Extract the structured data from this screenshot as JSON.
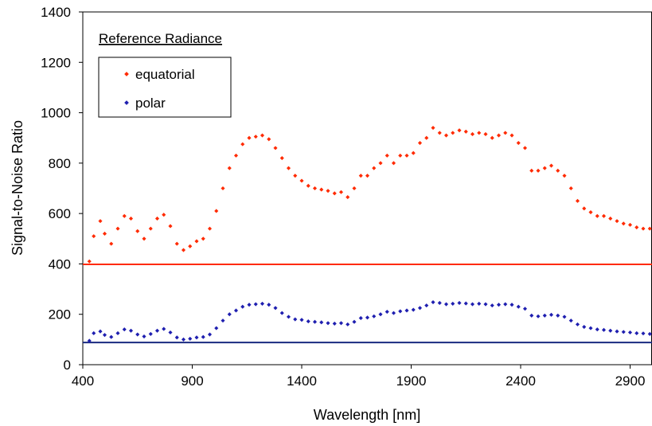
{
  "chart_data": {
    "type": "scatter",
    "title": "",
    "xlabel": "Wavelength [nm]",
    "ylabel": "Signal-to-Noise Ratio",
    "xlim": [
      400,
      3000
    ],
    "ylim": [
      0,
      1400
    ],
    "xticks": [
      400,
      900,
      1400,
      1900,
      2400,
      2900
    ],
    "yticks": [
      0,
      200,
      400,
      600,
      800,
      1000,
      1200,
      1400
    ],
    "grid": false,
    "legend": {
      "title": "Reference Radiance",
      "placement": "top-left",
      "entries": [
        "equatorial",
        "polar"
      ]
    },
    "series": [
      {
        "name": "equatorial",
        "color": "#ff2a00",
        "x": [
          430,
          450,
          480,
          500,
          530,
          560,
          590,
          620,
          650,
          680,
          710,
          740,
          770,
          800,
          830,
          860,
          890,
          920,
          950,
          980,
          1010,
          1040,
          1070,
          1100,
          1130,
          1160,
          1190,
          1220,
          1250,
          1280,
          1310,
          1340,
          1370,
          1400,
          1430,
          1460,
          1490,
          1520,
          1550,
          1580,
          1610,
          1640,
          1670,
          1700,
          1730,
          1760,
          1790,
          1820,
          1850,
          1880,
          1910,
          1940,
          1970,
          2000,
          2030,
          2060,
          2090,
          2120,
          2150,
          2180,
          2210,
          2240,
          2270,
          2300,
          2330,
          2360,
          2390,
          2420,
          2450,
          2480,
          2510,
          2540,
          2570,
          2600,
          2630,
          2660,
          2690,
          2720,
          2750,
          2780,
          2810,
          2840,
          2870,
          2900,
          2930,
          2960,
          2990
        ],
        "y": [
          410,
          510,
          570,
          520,
          480,
          540,
          590,
          580,
          530,
          500,
          540,
          580,
          595,
          550,
          480,
          455,
          470,
          490,
          500,
          540,
          610,
          700,
          780,
          830,
          875,
          900,
          905,
          910,
          895,
          860,
          820,
          780,
          750,
          730,
          710,
          700,
          695,
          690,
          680,
          685,
          665,
          700,
          750,
          750,
          780,
          800,
          830,
          800,
          830,
          830,
          840,
          880,
          900,
          940,
          920,
          910,
          920,
          930,
          925,
          915,
          920,
          915,
          900,
          910,
          920,
          910,
          880,
          860,
          770,
          770,
          780,
          790,
          770,
          750,
          700,
          650,
          620,
          605,
          590,
          590,
          580,
          570,
          560,
          555,
          545,
          540,
          540
        ]
      },
      {
        "name": "polar",
        "color": "#1f1fb0",
        "x": [
          430,
          450,
          480,
          500,
          530,
          560,
          590,
          620,
          650,
          680,
          710,
          740,
          770,
          800,
          830,
          860,
          890,
          920,
          950,
          980,
          1010,
          1040,
          1070,
          1100,
          1130,
          1160,
          1190,
          1220,
          1250,
          1280,
          1310,
          1340,
          1370,
          1400,
          1430,
          1460,
          1490,
          1520,
          1550,
          1580,
          1610,
          1640,
          1670,
          1700,
          1730,
          1760,
          1790,
          1820,
          1850,
          1880,
          1910,
          1940,
          1970,
          2000,
          2030,
          2060,
          2090,
          2120,
          2150,
          2180,
          2210,
          2240,
          2270,
          2300,
          2330,
          2360,
          2390,
          2420,
          2450,
          2480,
          2510,
          2540,
          2570,
          2600,
          2630,
          2660,
          2690,
          2720,
          2750,
          2780,
          2810,
          2840,
          2870,
          2900,
          2930,
          2960,
          2990
        ],
        "y": [
          95,
          125,
          132,
          118,
          110,
          125,
          140,
          135,
          120,
          112,
          122,
          135,
          142,
          128,
          108,
          100,
          103,
          108,
          110,
          120,
          145,
          175,
          200,
          215,
          230,
          238,
          240,
          242,
          238,
          225,
          205,
          190,
          180,
          178,
          172,
          170,
          168,
          165,
          163,
          165,
          160,
          170,
          185,
          187,
          192,
          200,
          210,
          205,
          212,
          215,
          218,
          225,
          235,
          248,
          245,
          240,
          242,
          245,
          243,
          240,
          242,
          240,
          235,
          238,
          240,
          238,
          230,
          222,
          195,
          192,
          195,
          198,
          195,
          190,
          175,
          160,
          150,
          145,
          140,
          138,
          135,
          132,
          130,
          128,
          125,
          124,
          122
        ]
      }
    ],
    "reference_lines": [
      {
        "label": "equatorial",
        "y": 398,
        "color": "#ff2a00"
      },
      {
        "label": "polar",
        "y": 88,
        "color": "#1a2a80"
      }
    ]
  }
}
